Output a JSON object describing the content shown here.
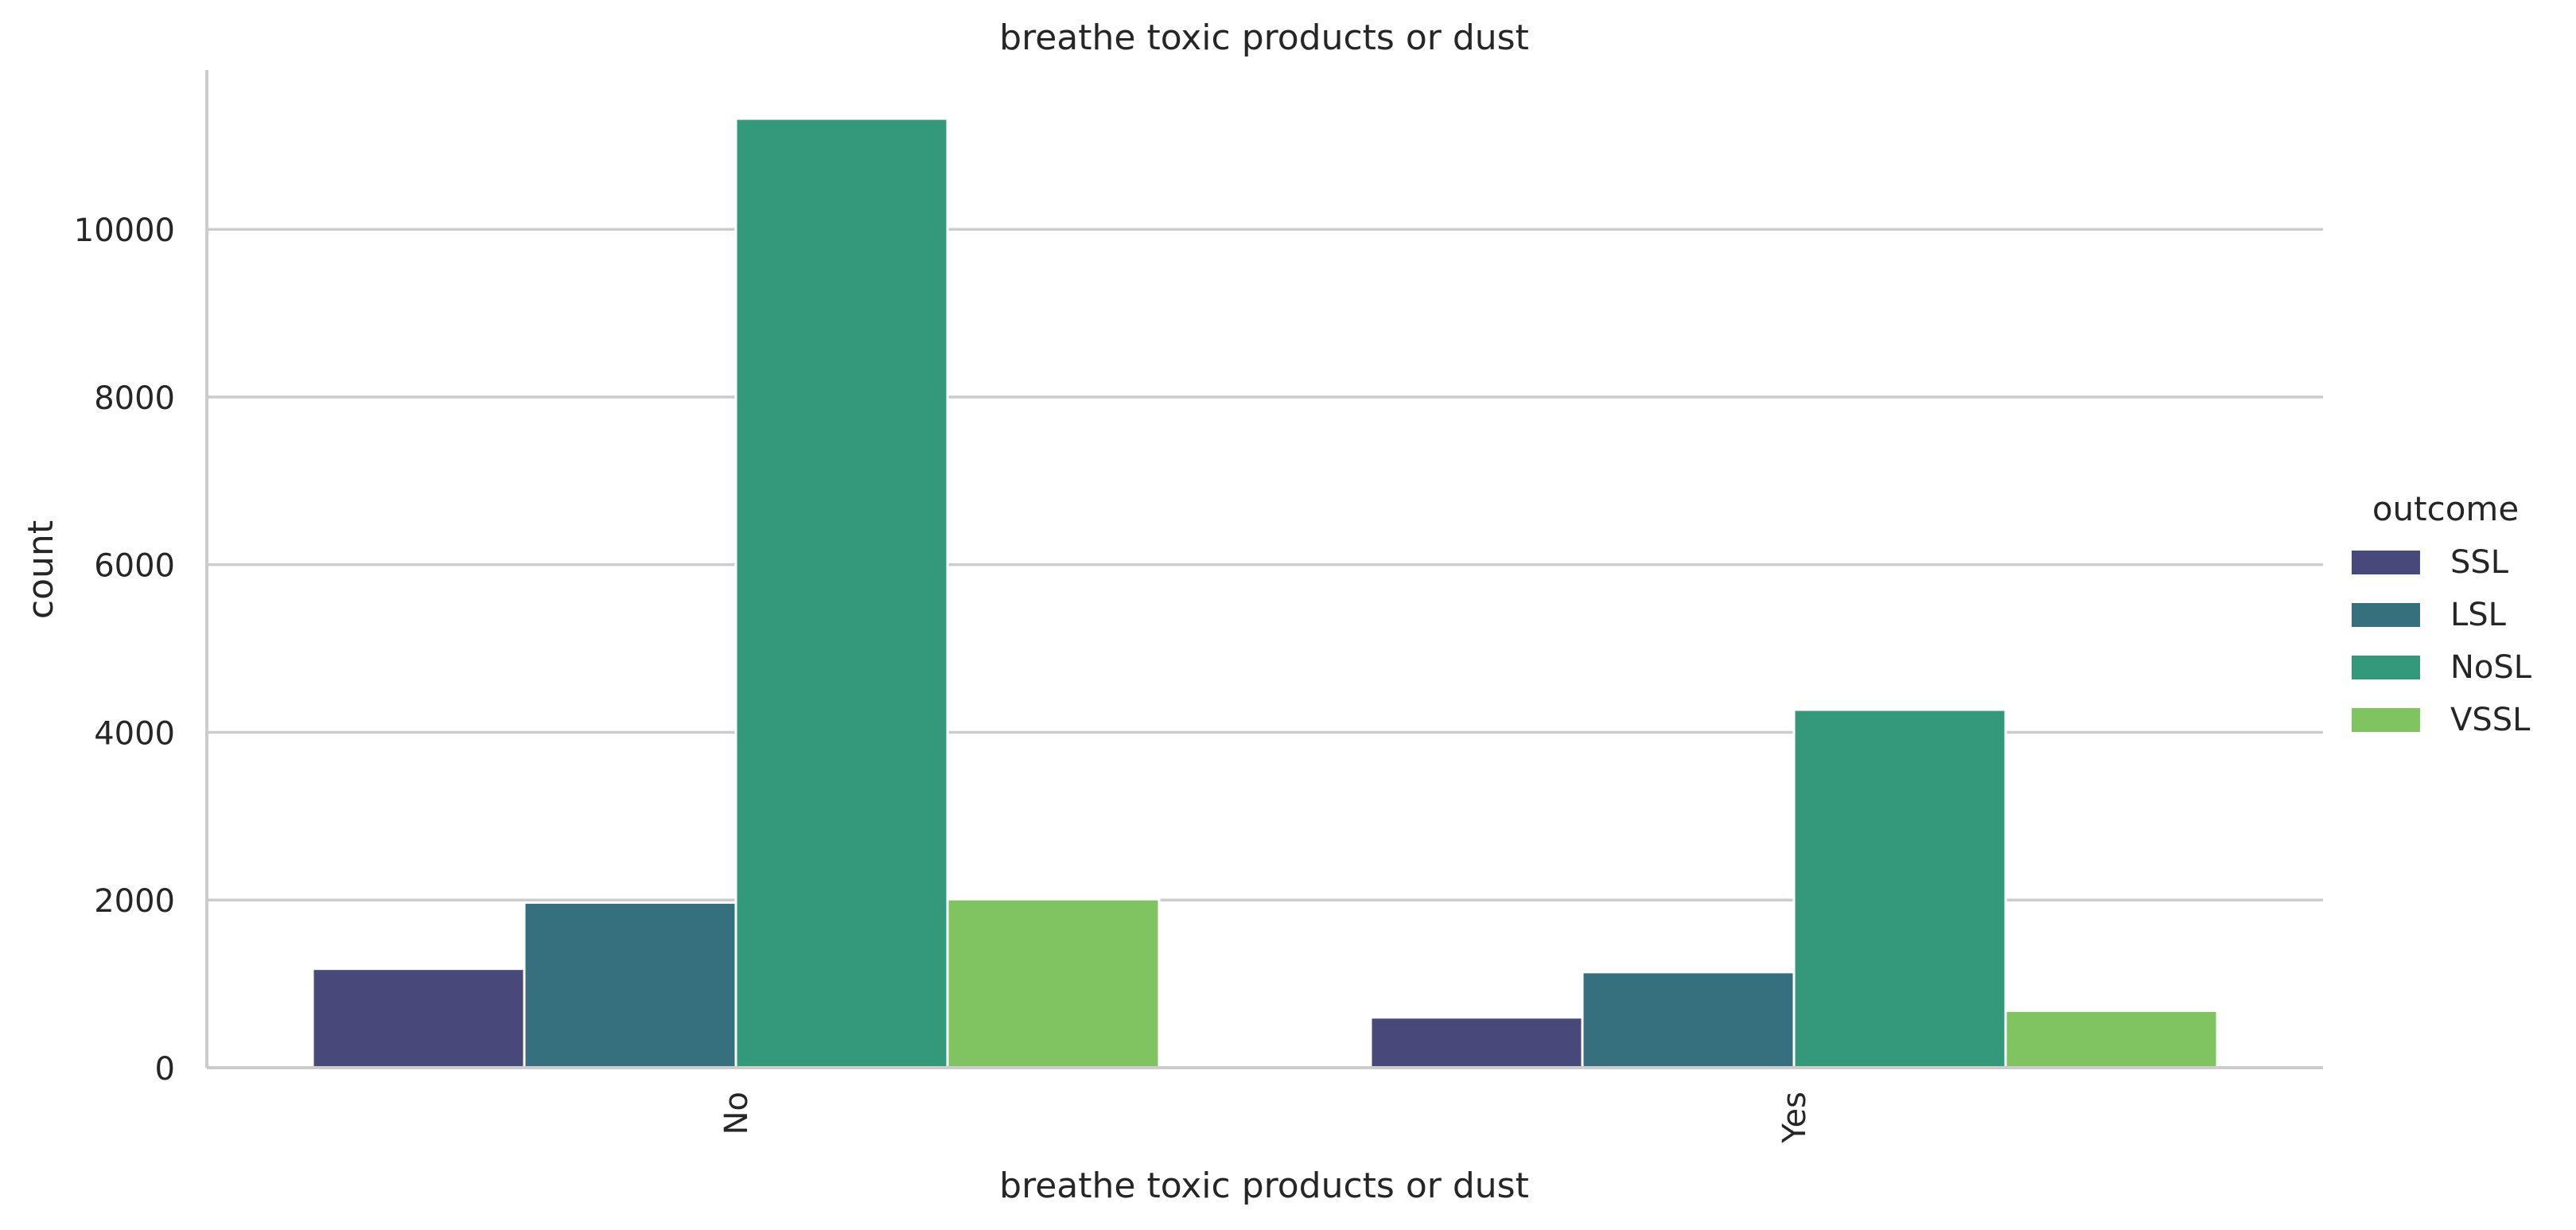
{
  "chart_data": {
    "type": "bar",
    "title": "breathe toxic products or dust",
    "xlabel": "breathe toxic products or dust",
    "ylabel": "count",
    "categories": [
      "No",
      "Yes"
    ],
    "ylim": [
      0,
      11900
    ],
    "yticks": [
      0,
      2000,
      4000,
      6000,
      8000,
      10000
    ],
    "grid": "horizontal",
    "legend": {
      "title": "outcome",
      "placement": "right"
    },
    "series": [
      {
        "name": "SSL",
        "color": "#48497a",
        "values": [
          1180,
          600
        ]
      },
      {
        "name": "LSL",
        "color": "#36707f",
        "values": [
          1970,
          1140
        ]
      },
      {
        "name": "NoSL",
        "color": "#33997a",
        "values": [
          11320,
          4270
        ]
      },
      {
        "name": "VSSL",
        "color": "#80c462",
        "values": [
          2010,
          680
        ]
      }
    ]
  }
}
